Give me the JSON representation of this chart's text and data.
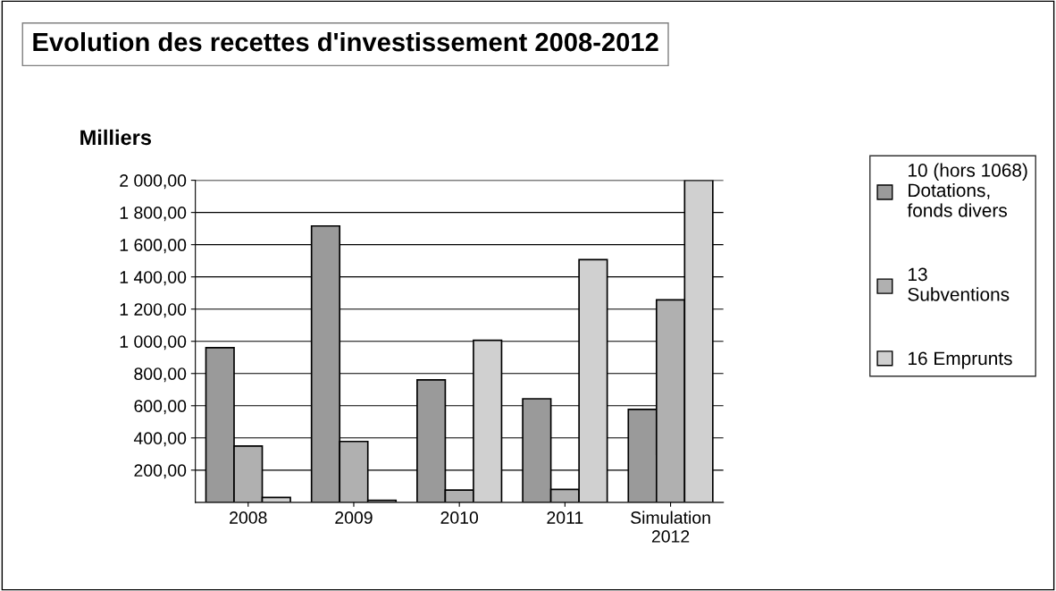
{
  "chart_data": {
    "type": "bar",
    "title": "Evolution des recettes d'investissement 2008-2012",
    "ylabel": "Milliers",
    "categories": [
      "2008",
      "2009",
      "2010",
      "2011",
      "Simulation\n2012"
    ],
    "series": [
      {
        "name": "10 (hors 1068)\nDotations,\nfonds divers",
        "color": "#9a9a9a",
        "values": [
          960,
          1716,
          760,
          643,
          577
        ]
      },
      {
        "name": "13\nSubventions",
        "color": "#b0b0b0",
        "values": [
          350,
          378,
          76,
          80,
          1257
        ]
      },
      {
        "name": "16 Emprunts",
        "color": "#d0d0d0",
        "values": [
          30,
          12,
          1006,
          1507,
          2000
        ]
      }
    ],
    "ylim": [
      0,
      2000
    ],
    "yticks": [
      {
        "value": 200,
        "label": "200,00"
      },
      {
        "value": 400,
        "label": "400,00"
      },
      {
        "value": 600,
        "label": "600,00"
      },
      {
        "value": 800,
        "label": "800,00"
      },
      {
        "value": 1000,
        "label": "1 000,00"
      },
      {
        "value": 1200,
        "label": "1 200,00"
      },
      {
        "value": 1400,
        "label": "1 400,00"
      },
      {
        "value": 1600,
        "label": "1 600,00"
      },
      {
        "value": 1800,
        "label": "1 800,00"
      },
      {
        "value": 2000,
        "label": "2 000,00"
      }
    ],
    "grid": "y",
    "legend": "right"
  }
}
